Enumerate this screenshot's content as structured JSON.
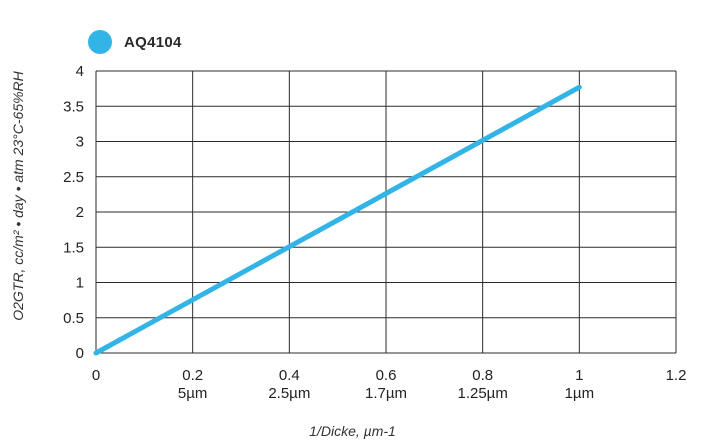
{
  "chart_data": {
    "type": "line",
    "xlabel": "1/Dicke, µm-1",
    "ylabel": "O2GTR, cc/m² • day • atm 23°C-65%RH",
    "xlim": [
      0,
      1.2
    ],
    "ylim": [
      0,
      4
    ],
    "grid": true,
    "legend_position": "top-left",
    "x_ticks": [
      "0",
      "0.2",
      "0.4",
      "0.6",
      "0.8",
      "1",
      "1.2"
    ],
    "x_ticks_secondary": [
      "",
      "5µm",
      "2.5µm",
      "1.7µm",
      "1.25µm",
      "1µm",
      ""
    ],
    "y_ticks": [
      "0",
      "0.5",
      "1",
      "1.5",
      "2",
      "2.5",
      "3",
      "3.5",
      "4"
    ],
    "series": [
      {
        "name": "AQ4104",
        "color": "#33b4e6",
        "x": [
          0,
          1
        ],
        "y": [
          0,
          3.77
        ]
      }
    ]
  }
}
